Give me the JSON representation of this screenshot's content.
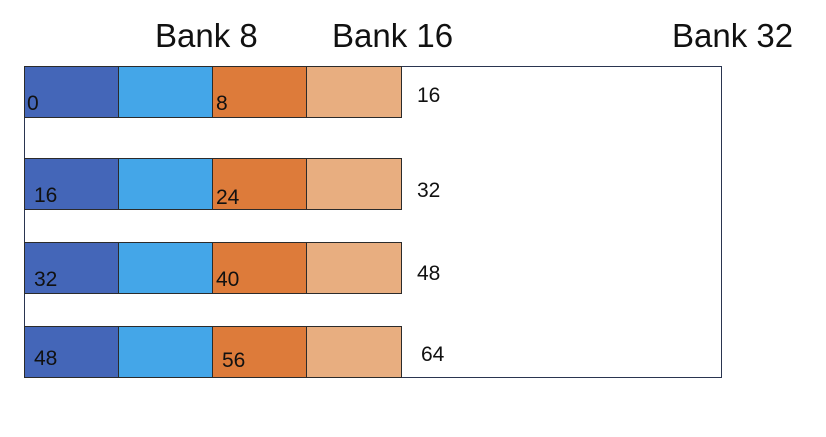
{
  "headers": [
    "Bank 8",
    "Bank 16",
    "Bank 32"
  ],
  "colors": {
    "bank0": "#4466b8",
    "bank4": "#44a6e8",
    "bank8": "#dd7b3a",
    "bank12": "#e8ae80",
    "frame": "#2a3550"
  },
  "rows": [
    {
      "start_label": "0",
      "mid_label": "8",
      "end_label": "16"
    },
    {
      "start_label": "16",
      "mid_label": "24",
      "end_label": "32"
    },
    {
      "start_label": "32",
      "mid_label": "40",
      "end_label": "48"
    },
    {
      "start_label": "48",
      "mid_label": "56",
      "end_label": "64"
    }
  ]
}
